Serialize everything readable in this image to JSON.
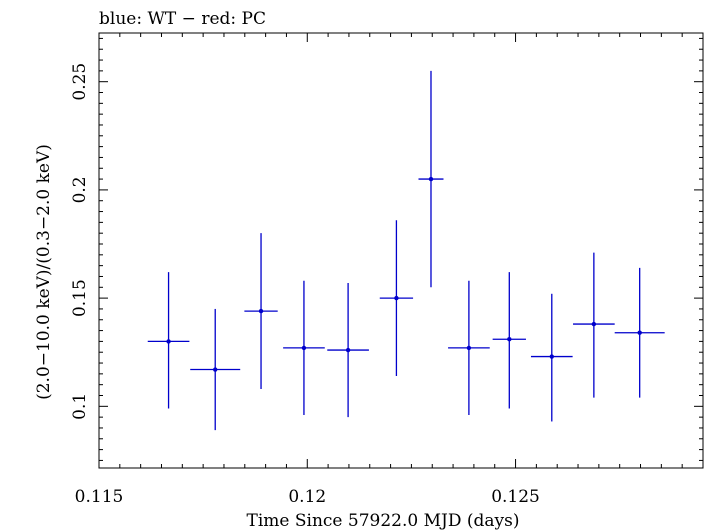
{
  "chart_data": {
    "type": "scatter",
    "title": "blue: WT − red: PC",
    "xlabel": "Time Since 57922.0 MJD (days)",
    "ylabel": "(2.0−10.0 keV)/(0.3−2.0 keV)",
    "xlim": [
      0.115,
      0.1295
    ],
    "ylim": [
      0.0715,
      0.2725
    ],
    "xticks": [
      0.115,
      0.12,
      0.125
    ],
    "xtick_labels": [
      "0.115",
      "0.12",
      "0.125"
    ],
    "yticks": [
      0.1,
      0.15,
      0.2,
      0.25
    ],
    "ytick_labels": [
      "0.1",
      "0.15",
      "0.2",
      "0.25"
    ],
    "grid": false,
    "series": [
      {
        "color": "#0000cc",
        "points": [
          {
            "x": 0.11667,
            "xerr": 0.0005,
            "y": 0.13,
            "yerr_low": 0.031,
            "yerr_high": 0.032
          },
          {
            "x": 0.11779,
            "xerr": 0.0006,
            "y": 0.117,
            "yerr_low": 0.028,
            "yerr_high": 0.028
          },
          {
            "x": 0.11889,
            "xerr": 0.0004,
            "y": 0.144,
            "yerr_low": 0.036,
            "yerr_high": 0.036
          },
          {
            "x": 0.11992,
            "xerr": 0.0005,
            "y": 0.127,
            "yerr_low": 0.031,
            "yerr_high": 0.031
          },
          {
            "x": 0.12098,
            "xerr": 0.0005,
            "y": 0.126,
            "yerr_low": 0.031,
            "yerr_high": 0.031
          },
          {
            "x": 0.12214,
            "xerr": 0.0004,
            "y": 0.15,
            "yerr_low": 0.036,
            "yerr_high": 0.036
          },
          {
            "x": 0.12297,
            "xerr": 0.0003,
            "y": 0.205,
            "yerr_low": 0.05,
            "yerr_high": 0.05
          },
          {
            "x": 0.12388,
            "xerr": 0.0005,
            "y": 0.127,
            "yerr_low": 0.031,
            "yerr_high": 0.031
          },
          {
            "x": 0.12485,
            "xerr": 0.0004,
            "y": 0.131,
            "yerr_low": 0.032,
            "yerr_high": 0.031
          },
          {
            "x": 0.12587,
            "xerr": 0.0005,
            "y": 0.123,
            "yerr_low": 0.03,
            "yerr_high": 0.029
          },
          {
            "x": 0.12688,
            "xerr": 0.0005,
            "y": 0.138,
            "yerr_low": 0.034,
            "yerr_high": 0.033
          },
          {
            "x": 0.12798,
            "xerr": 0.0006,
            "y": 0.134,
            "yerr_low": 0.03,
            "yerr_high": 0.03
          }
        ]
      }
    ]
  }
}
